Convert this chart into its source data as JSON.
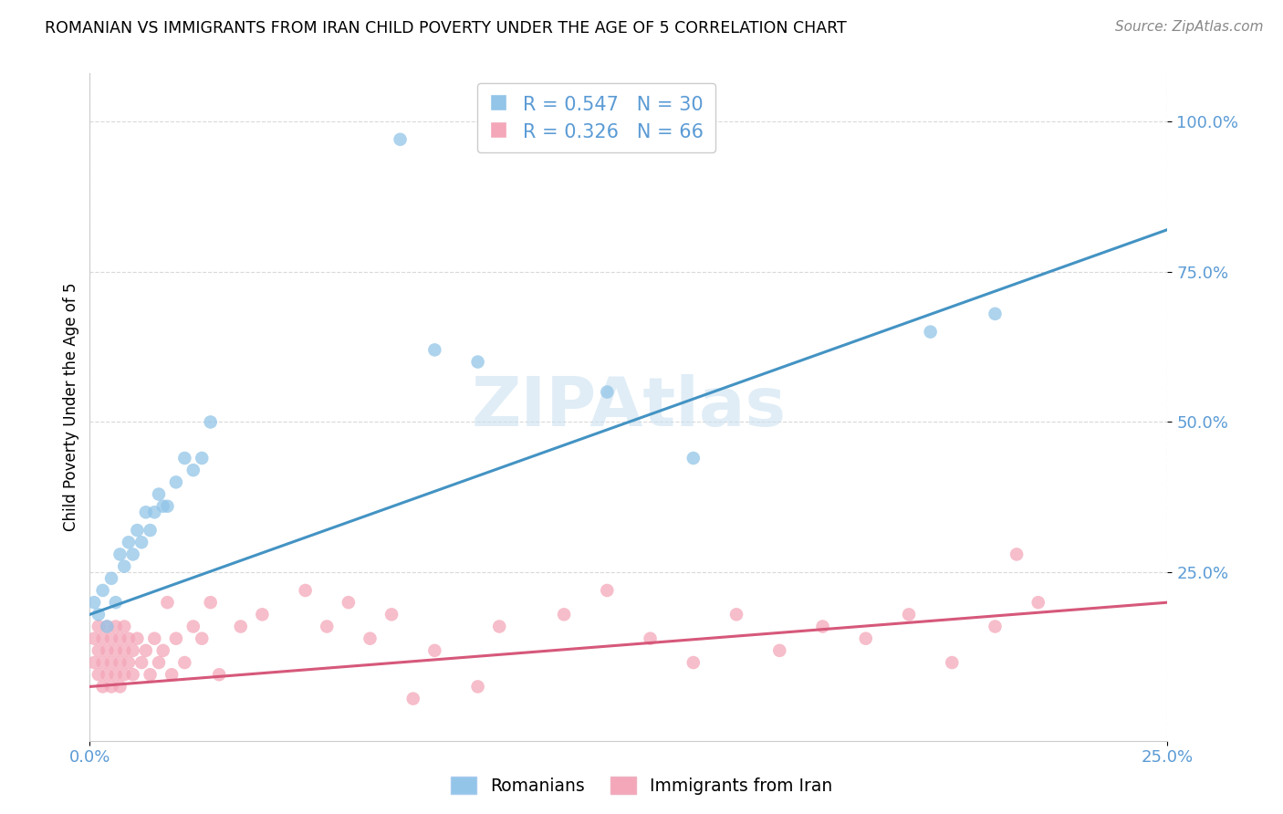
{
  "title": "ROMANIAN VS IMMIGRANTS FROM IRAN CHILD POVERTY UNDER THE AGE OF 5 CORRELATION CHART",
  "source": "Source: ZipAtlas.com",
  "ylabel": "Child Poverty Under the Age of 5",
  "xlim": [
    0.0,
    0.25
  ],
  "ylim": [
    -0.03,
    1.08
  ],
  "yticks": [
    0.25,
    0.5,
    0.75,
    1.0
  ],
  "ytick_labels": [
    "25.0%",
    "50.0%",
    "75.0%",
    "100.0%"
  ],
  "xticks": [
    0.0,
    0.25
  ],
  "xtick_labels": [
    "0.0%",
    "25.0%"
  ],
  "romanian_R": 0.547,
  "romanian_N": 30,
  "iran_R": 0.326,
  "iran_N": 66,
  "blue_color": "#92c5e8",
  "pink_color": "#f4a7b9",
  "blue_line_color": "#4393c3",
  "pink_line_color": "#d6587a",
  "watermark": "ZIPAtlas",
  "legend_label_1": "Romanians",
  "legend_label_2": "Immigrants from Iran",
  "romanian_x": [
    0.001,
    0.002,
    0.003,
    0.004,
    0.005,
    0.006,
    0.007,
    0.008,
    0.009,
    0.01,
    0.011,
    0.012,
    0.013,
    0.014,
    0.015,
    0.016,
    0.017,
    0.018,
    0.02,
    0.022,
    0.024,
    0.026,
    0.028,
    0.072,
    0.08,
    0.09,
    0.12,
    0.14,
    0.195,
    0.21
  ],
  "romanian_y": [
    0.2,
    0.18,
    0.22,
    0.16,
    0.24,
    0.2,
    0.28,
    0.26,
    0.3,
    0.28,
    0.32,
    0.3,
    0.35,
    0.32,
    0.35,
    0.38,
    0.36,
    0.36,
    0.4,
    0.44,
    0.42,
    0.44,
    0.5,
    0.97,
    0.62,
    0.6,
    0.55,
    0.44,
    0.65,
    0.68
  ],
  "iran_x": [
    0.001,
    0.001,
    0.002,
    0.002,
    0.002,
    0.003,
    0.003,
    0.003,
    0.004,
    0.004,
    0.004,
    0.005,
    0.005,
    0.005,
    0.006,
    0.006,
    0.006,
    0.007,
    0.007,
    0.007,
    0.008,
    0.008,
    0.008,
    0.009,
    0.009,
    0.01,
    0.01,
    0.011,
    0.012,
    0.013,
    0.014,
    0.015,
    0.016,
    0.017,
    0.018,
    0.019,
    0.02,
    0.022,
    0.024,
    0.026,
    0.028,
    0.03,
    0.035,
    0.04,
    0.05,
    0.055,
    0.06,
    0.065,
    0.07,
    0.075,
    0.08,
    0.09,
    0.095,
    0.11,
    0.12,
    0.13,
    0.14,
    0.15,
    0.16,
    0.17,
    0.18,
    0.19,
    0.2,
    0.21,
    0.215,
    0.22
  ],
  "iran_y": [
    0.14,
    0.1,
    0.16,
    0.12,
    0.08,
    0.14,
    0.1,
    0.06,
    0.12,
    0.08,
    0.16,
    0.1,
    0.14,
    0.06,
    0.12,
    0.08,
    0.16,
    0.1,
    0.14,
    0.06,
    0.12,
    0.08,
    0.16,
    0.1,
    0.14,
    0.12,
    0.08,
    0.14,
    0.1,
    0.12,
    0.08,
    0.14,
    0.1,
    0.12,
    0.2,
    0.08,
    0.14,
    0.1,
    0.16,
    0.14,
    0.2,
    0.08,
    0.16,
    0.18,
    0.22,
    0.16,
    0.2,
    0.14,
    0.18,
    0.04,
    0.12,
    0.06,
    0.16,
    0.18,
    0.22,
    0.14,
    0.1,
    0.18,
    0.12,
    0.16,
    0.14,
    0.18,
    0.1,
    0.16,
    0.28,
    0.2
  ],
  "blue_line_x": [
    0.0,
    0.25
  ],
  "blue_line_y": [
    0.18,
    0.82
  ],
  "pink_line_x": [
    0.0,
    0.25
  ],
  "pink_line_y": [
    0.06,
    0.2
  ]
}
